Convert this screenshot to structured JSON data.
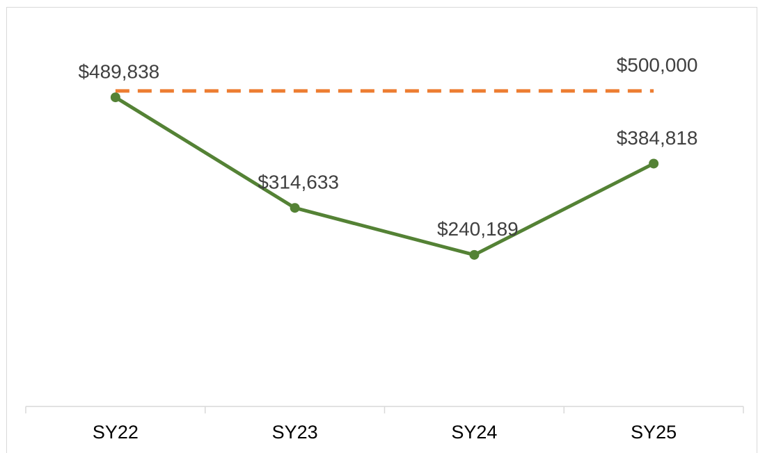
{
  "chart_data": {
    "type": "line",
    "categories": [
      "SY22",
      "SY23",
      "SY24",
      "SY25"
    ],
    "series": [
      {
        "color": "#548235",
        "style": "solid",
        "markers": true,
        "values": [
          489838,
          314633,
          240189,
          384818
        ],
        "value_labels": [
          "$489,838",
          "$314,633",
          "$240,189",
          "$384,818"
        ]
      },
      {
        "color": "#ed7d31",
        "style": "dashed",
        "markers": false,
        "values": [
          500000,
          500000,
          500000,
          500000
        ],
        "value_labels": [
          null,
          null,
          null,
          "$500,000"
        ]
      }
    ],
    "ylim": [
      0,
      600000
    ]
  }
}
